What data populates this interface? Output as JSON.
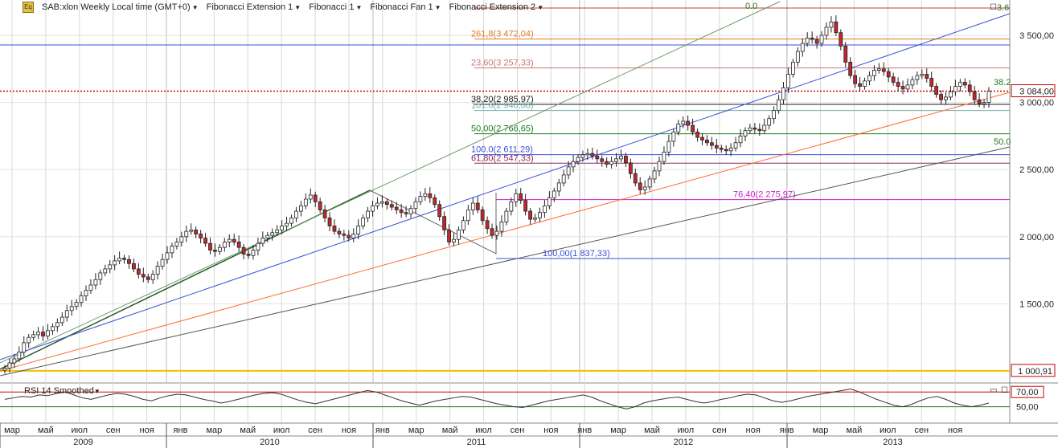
{
  "toolbar": {
    "symbol_label": "SAB:xlon Weekly Local time (GMT+0)",
    "studies": [
      "Fibonacci Extension 1",
      "Fibonacci 1",
      "Fibonacci Fan 1",
      "Fibonacci Extension 2"
    ]
  },
  "rsi": {
    "title": "RSI 14 Smoothed",
    "overbought_label": "70,00",
    "mid_label": "50,00"
  },
  "colors": {
    "candle_up": "#ffffff",
    "candle_down": "#c0282e",
    "fan1": "#2a5c2a",
    "fan_blue": "#3b4fd8",
    "fan_orange": "#ff6a33",
    "fan_gray": "#555555",
    "yellow": "#f0c000",
    "price_red": "#cc0000",
    "rsi_line": "#333333"
  },
  "chart_data": {
    "type": "candlestick",
    "ylim": [
      1000,
      3700
    ],
    "y_ticks": [
      "3 500,00",
      "3 000,00",
      "2 500,00",
      "2 000,00",
      "1 500,00"
    ],
    "x_month_labels": [
      "мар",
      "май",
      "июл",
      "сен",
      "ноя",
      "янв",
      "мар",
      "май",
      "июл",
      "сен",
      "ноя",
      "янв",
      "мар",
      "май",
      "июл",
      "сен",
      "ноя",
      "янв",
      "мар",
      "май",
      "июл",
      "сен",
      "ноя",
      "янв",
      "мар",
      "май",
      "июл",
      "сен",
      "ноя"
    ],
    "x_year_labels": [
      "2009",
      "2010",
      "2011",
      "2012",
      "2013"
    ],
    "last_price": {
      "value": 3084,
      "label": "3 084,00"
    },
    "support_level": {
      "value": 1000.91,
      "label": "1 000,91"
    },
    "fib_levels": [
      {
        "label": "261,8(3 472,04)",
        "value": 3472.04,
        "color": "#e07a28"
      },
      {
        "label": "23,60(3 257,33)",
        "value": 3257.33,
        "color": "#c87878"
      },
      {
        "label": "38,20(2 985,97)",
        "value": 2985.97,
        "color": "#222222"
      },
      {
        "label": "161.8(2 940,08)",
        "value": 2940.08,
        "color": "#7aa"
      },
      {
        "label": "50,00(2 766,65)",
        "value": 2766.65,
        "color": "#1e7a1e"
      },
      {
        "label": "100.0(2 611,29)",
        "value": 2611.29,
        "color": "#3b4fd8"
      },
      {
        "label": "61,80(2 547,33)",
        "value": 2547.33,
        "color": "#8a2a5a"
      },
      {
        "label": "76,40(2 275,97)",
        "value": 2275.97,
        "color": "#d020c0"
      },
      {
        "label": "100,00(1 837,33)",
        "value": 1837.33,
        "color": "#3b4fd8"
      }
    ],
    "fan_labels": [
      "0.0",
      "3.6",
      "38.2",
      "50.0"
    ],
    "series": [
      {
        "name": "",
        "values": [
          1020,
          1060,
          1090,
          1140,
          1210,
          1250,
          1270,
          1290,
          1260,
          1300,
          1330,
          1360,
          1400,
          1450,
          1480,
          1510,
          1560,
          1600,
          1640,
          1680,
          1730,
          1760,
          1790,
          1820,
          1840,
          1830,
          1800,
          1760,
          1720,
          1700,
          1680,
          1720,
          1780,
          1830,
          1880,
          1930,
          1960,
          2000,
          2040,
          2050,
          2020,
          1990,
          1950,
          1900,
          1890,
          1920,
          1960,
          1980,
          1960,
          1920,
          1870,
          1860,
          1900,
          1950,
          1990,
          2010,
          2030,
          2050,
          2080,
          2100,
          2140,
          2190,
          2230,
          2280,
          2310,
          2260,
          2200,
          2140,
          2080,
          2040,
          2020,
          2010,
          1990,
          2020,
          2080,
          2140,
          2190,
          2230,
          2250,
          2260,
          2240,
          2220,
          2200,
          2180,
          2170,
          2210,
          2260,
          2300,
          2320,
          2290,
          2240,
          2150,
          2050,
          1960,
          1980,
          2050,
          2120,
          2200,
          2250,
          2200,
          2120,
          2060,
          2010,
          2040,
          2110,
          2190,
          2260,
          2320,
          2270,
          2190,
          2130,
          2140,
          2180,
          2230,
          2290,
          2340,
          2400,
          2460,
          2520,
          2560,
          2590,
          2610,
          2620,
          2600,
          2580,
          2560,
          2540,
          2560,
          2580,
          2600,
          2550,
          2470,
          2400,
          2350,
          2370,
          2430,
          2490,
          2560,
          2630,
          2710,
          2780,
          2840,
          2860,
          2830,
          2780,
          2740,
          2720,
          2700,
          2680,
          2660,
          2650,
          2640,
          2660,
          2700,
          2750,
          2790,
          2810,
          2800,
          2790,
          2830,
          2880,
          2940,
          3020,
          3110,
          3210,
          3300,
          3380,
          3440,
          3480,
          3470,
          3440,
          3500,
          3560,
          3600,
          3520,
          3420,
          3300,
          3200,
          3140,
          3120,
          3160,
          3200,
          3240,
          3250,
          3230,
          3190,
          3150,
          3120,
          3100,
          3130,
          3170,
          3200,
          3210,
          3180,
          3120,
          3060,
          3020,
          3040,
          3080,
          3120,
          3150,
          3130,
          3080,
          3020,
          2990,
          3000,
          3084
        ]
      }
    ],
    "rsi_values": [
      60,
      62,
      64,
      63,
      66,
      65,
      68,
      70,
      66,
      62,
      60,
      63,
      66,
      68,
      67,
      64,
      60,
      58,
      62,
      65,
      67,
      66,
      63,
      60,
      58,
      55,
      57,
      60,
      63,
      66,
      68,
      69,
      67,
      63,
      59,
      56,
      54,
      57,
      60,
      63,
      66,
      69,
      72,
      70,
      66,
      62,
      58,
      55,
      52,
      55,
      58,
      60,
      62,
      64,
      63,
      60,
      57,
      54,
      52,
      50,
      49,
      52,
      55,
      58,
      60,
      62,
      64,
      66,
      63,
      58,
      54,
      50,
      47,
      50,
      55,
      58,
      60,
      62,
      63,
      60,
      57,
      55,
      57,
      60,
      62,
      65,
      67,
      66,
      62,
      58,
      56,
      58,
      61,
      64,
      66,
      68,
      70,
      72,
      74,
      70,
      65,
      60,
      56,
      52,
      50,
      53,
      58,
      62,
      64,
      60,
      55,
      52,
      50,
      52,
      55
    ]
  }
}
